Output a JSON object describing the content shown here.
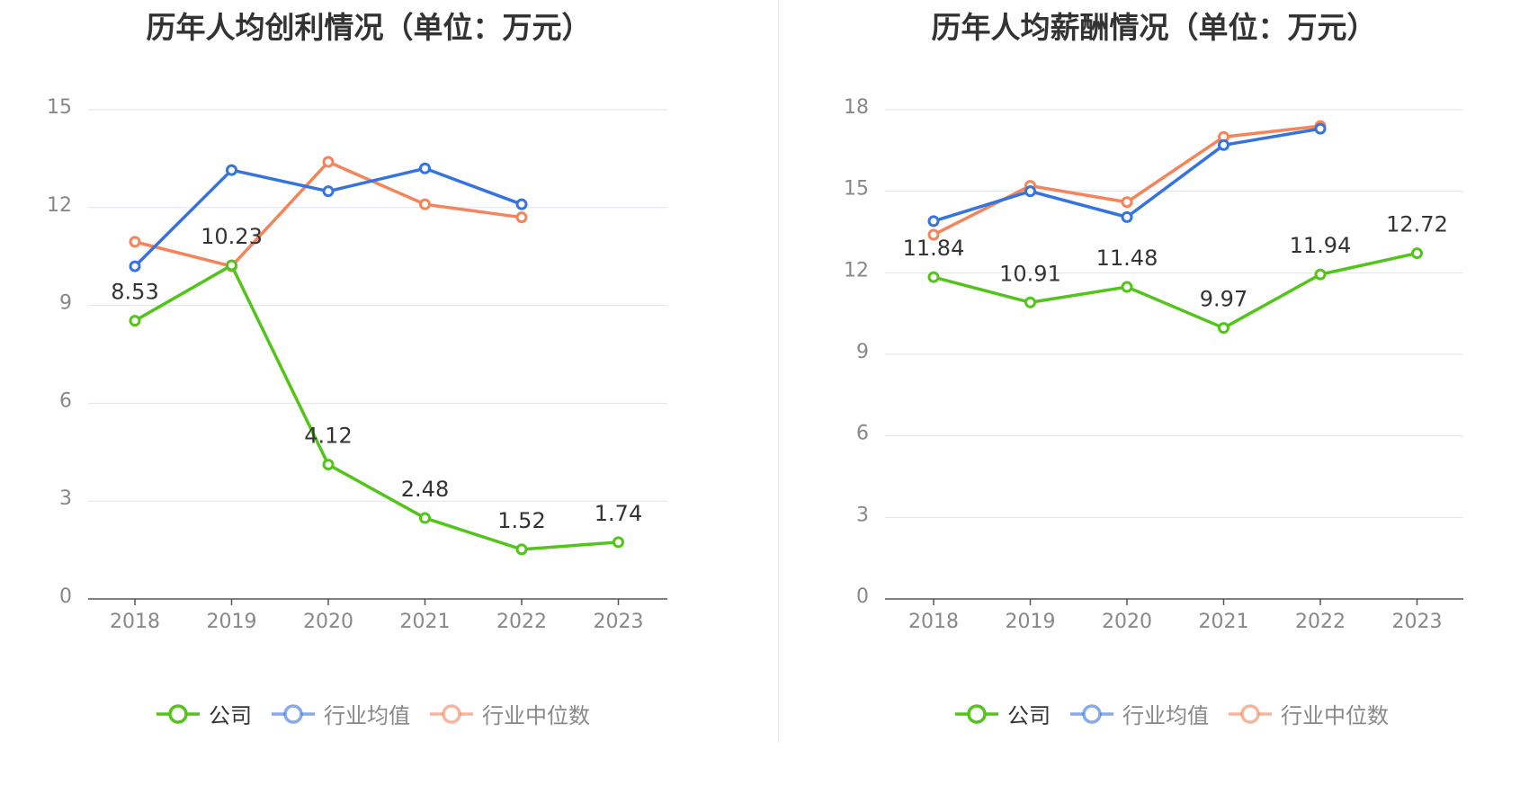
{
  "chart_data": [
    {
      "type": "line",
      "title": "历年人均创利情况（单位：万元）",
      "categories": [
        "2018",
        "2019",
        "2020",
        "2021",
        "2022",
        "2023"
      ],
      "ylim": [
        0,
        15
      ],
      "yticks": [
        "0",
        "3",
        "6",
        "9",
        "12",
        "15"
      ],
      "grid": true,
      "legend_position": "bottom",
      "series": [
        {
          "name": "公司",
          "color": "#52c41a",
          "values": [
            8.53,
            10.23,
            4.12,
            2.48,
            1.52,
            1.74
          ],
          "labels": [
            "8.53",
            "10.23",
            "4.12",
            "2.48",
            "1.52",
            "1.74"
          ]
        },
        {
          "name": "行业均值",
          "color": "#3573e0",
          "values": [
            10.2,
            13.15,
            12.5,
            13.2,
            12.1,
            null
          ]
        },
        {
          "name": "行业中位数",
          "color": "#f4845a",
          "values": [
            10.95,
            10.2,
            13.4,
            12.1,
            11.7,
            null
          ]
        }
      ]
    },
    {
      "type": "line",
      "title": "历年人均薪酬情况（单位：万元）",
      "categories": [
        "2018",
        "2019",
        "2020",
        "2021",
        "2022",
        "2023"
      ],
      "ylim": [
        0,
        18
      ],
      "yticks": [
        "0",
        "3",
        "6",
        "9",
        "12",
        "15",
        "18"
      ],
      "grid": true,
      "legend_position": "bottom",
      "series": [
        {
          "name": "公司",
          "color": "#52c41a",
          "values": [
            11.84,
            10.91,
            11.48,
            9.97,
            11.94,
            12.72
          ],
          "labels": [
            "11.84",
            "10.91",
            "11.48",
            "9.97",
            "11.94",
            "12.72"
          ]
        },
        {
          "name": "行业均值",
          "color": "#3573e0",
          "values": [
            13.9,
            15.0,
            14.05,
            16.7,
            17.3,
            null
          ]
        },
        {
          "name": "行业中位数",
          "color": "#f4845a",
          "values": [
            13.4,
            15.2,
            14.6,
            17.0,
            17.4,
            null
          ]
        }
      ]
    }
  ]
}
